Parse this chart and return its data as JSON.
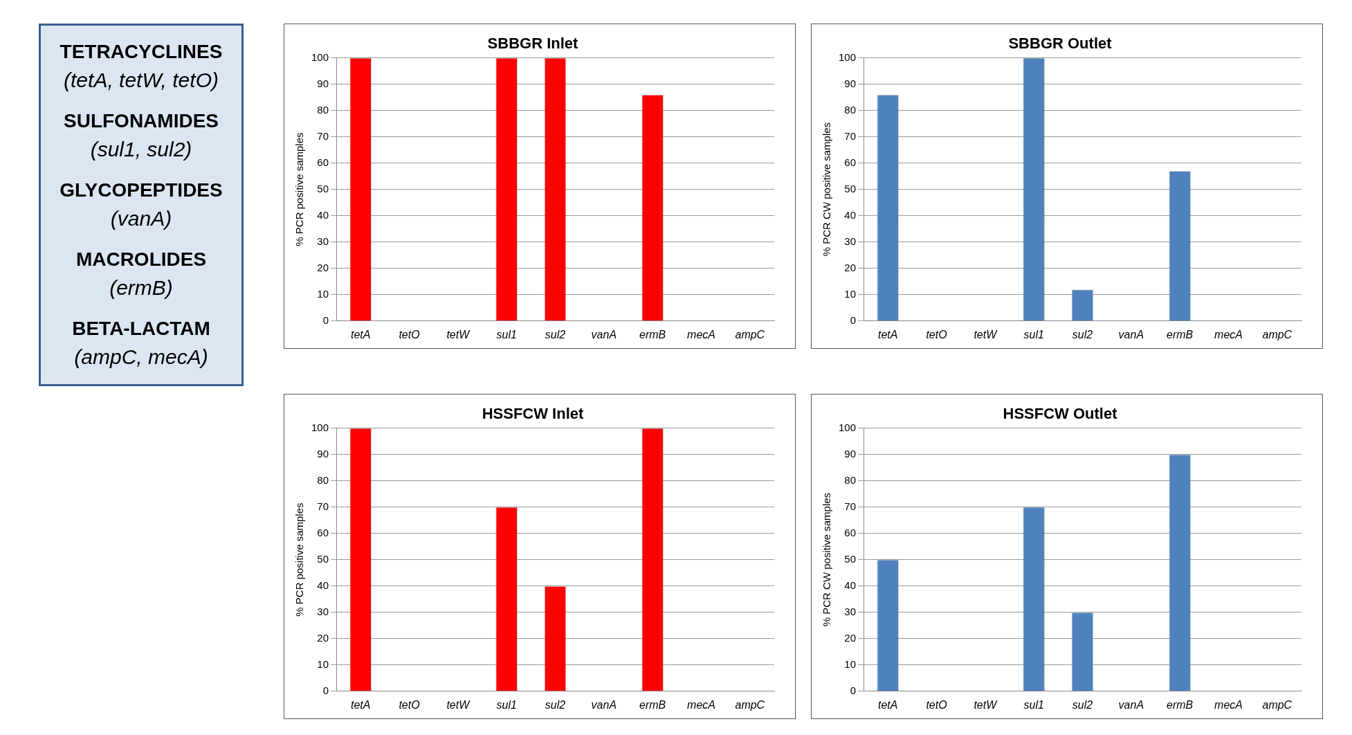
{
  "chart_data": [
    {
      "type": "other",
      "annotations": [
        "TETRACYCLINES",
        "(tetA, tetW, tetO)",
        "SULFONAMIDES",
        "(sul1, sul2)",
        "GLYCOPEPTIDES",
        "(vanA)",
        "MACROLIDES",
        "(ermB)",
        "BETA-LACTAM",
        "(ampC, mecA)"
      ]
    },
    {
      "type": "bar",
      "title": "SBBGR Inlet",
      "ylabel": "% PCR positive samples",
      "categories": [
        "tetA",
        "tetO",
        "tetW",
        "sul1",
        "sul2",
        "vanA",
        "ermB",
        "mecA",
        "ampC"
      ],
      "values": [
        100,
        0,
        0,
        100,
        100,
        0,
        86,
        0,
        0
      ],
      "color": "#ff0000",
      "ylim": [
        0,
        100
      ],
      "yticks": [
        0,
        10,
        20,
        30,
        40,
        50,
        60,
        70,
        80,
        90,
        100
      ],
      "grid": "y"
    },
    {
      "type": "bar",
      "title": "SBBGR Outlet",
      "ylabel": "% PCR CW positive samples",
      "categories": [
        "tetA",
        "tetO",
        "tetW",
        "sul1",
        "sul2",
        "vanA",
        "ermB",
        "mecA",
        "ampC"
      ],
      "values": [
        86,
        0,
        0,
        100,
        12,
        0,
        57,
        0,
        0
      ],
      "color": "#4f81bd",
      "ylim": [
        0,
        100
      ],
      "yticks": [
        0,
        10,
        20,
        30,
        40,
        50,
        60,
        70,
        80,
        90,
        100
      ],
      "grid": "y"
    },
    {
      "type": "bar",
      "title": "HSSFCW Inlet",
      "ylabel": "% PCR positive samples",
      "categories": [
        "tetA",
        "tetO",
        "tetW",
        "sul1",
        "sul2",
        "vanA",
        "ermB",
        "mecA",
        "ampC"
      ],
      "values": [
        100,
        0,
        0,
        70,
        40,
        0,
        100,
        0,
        0
      ],
      "color": "#ff0000",
      "ylim": [
        0,
        100
      ],
      "yticks": [
        0,
        10,
        20,
        30,
        40,
        50,
        60,
        70,
        80,
        90,
        100
      ],
      "grid": "y"
    },
    {
      "type": "bar",
      "title": "HSSFCW Outlet",
      "ylabel": "% PCR CW positive samples",
      "categories": [
        "tetA",
        "tetO",
        "tetW",
        "sul1",
        "sul2",
        "vanA",
        "ermB",
        "mecA",
        "ampC"
      ],
      "values": [
        50,
        0,
        0,
        70,
        30,
        0,
        90,
        0,
        0
      ],
      "color": "#4f81bd",
      "ylim": [
        0,
        100
      ],
      "yticks": [
        0,
        10,
        20,
        30,
        40,
        50,
        60,
        70,
        80,
        90,
        100
      ],
      "grid": "y"
    }
  ]
}
